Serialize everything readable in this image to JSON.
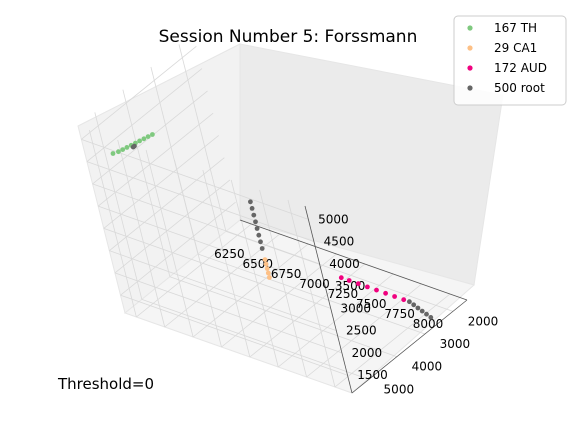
{
  "chart_data": {
    "type": "scatter",
    "projection": "3d",
    "title": "Session Number 5: Forssmann",
    "annotation": "Threshold=0",
    "legend_position": "top-right",
    "grid": true,
    "x_axis": {
      "label": "",
      "ticks": [
        6250,
        6500,
        6750,
        7000,
        7250,
        7500,
        7750,
        8000
      ],
      "range": [
        6150,
        8150
      ]
    },
    "y_axis": {
      "label": "",
      "ticks": [
        2000,
        3000,
        4000,
        5000
      ],
      "range": [
        1500,
        5600
      ]
    },
    "z_axis": {
      "label": "",
      "ticks": [
        1500,
        2000,
        2500,
        3000,
        3500,
        4000,
        4500,
        5000
      ],
      "range": [
        1100,
        5300
      ]
    },
    "series": [
      {
        "name": "167 TH",
        "color": "#7fc97f",
        "x": [
          6350,
          6390,
          6420,
          6450,
          6480,
          6510,
          6540,
          6570,
          6600,
          6630
        ],
        "y": [
          5380,
          5330,
          5280,
          5230,
          5180,
          5130,
          5080,
          5030,
          4980,
          4930
        ],
        "z": [
          4750,
          4800,
          4850,
          4900,
          4950,
          5000,
          5050,
          5100,
          5150,
          5200
        ]
      },
      {
        "name": "29 CA1",
        "color": "#fdc086",
        "x": [
          7600,
          7600,
          7600,
          7600,
          7600
        ],
        "y": [
          5500,
          5500,
          5500,
          5500,
          5500
        ],
        "z": [
          3150,
          3250,
          3350,
          3450,
          3550
        ]
      },
      {
        "name": "172 AUD",
        "color": "#f0027f",
        "x": [
          7250,
          7320,
          7400,
          7480,
          7560,
          7640,
          7720,
          7800
        ],
        "y": [
          2300,
          2300,
          2300,
          2300,
          2300,
          2300,
          2300,
          2300
        ],
        "z": [
          1200,
          1200,
          1200,
          1200,
          1200,
          1200,
          1200,
          1200
        ]
      },
      {
        "name": "500 root",
        "color": "#666666",
        "x": [
          6600,
          6620,
          7600,
          7600,
          7600,
          7600,
          7600,
          7600,
          7600,
          7600,
          7850,
          7900,
          7950,
          8000,
          8050,
          8100
        ],
        "y": [
          5500,
          5520,
          5500,
          5500,
          5500,
          5500,
          5500,
          5500,
          5500,
          5500,
          2300,
          2350,
          2400,
          2450,
          2500,
          2550
        ],
        "z": [
          5180,
          5230,
          3800,
          3950,
          4100,
          4250,
          4400,
          4550,
          4700,
          4850,
          1200,
          1200,
          1200,
          1200,
          1200,
          1200
        ]
      }
    ]
  }
}
